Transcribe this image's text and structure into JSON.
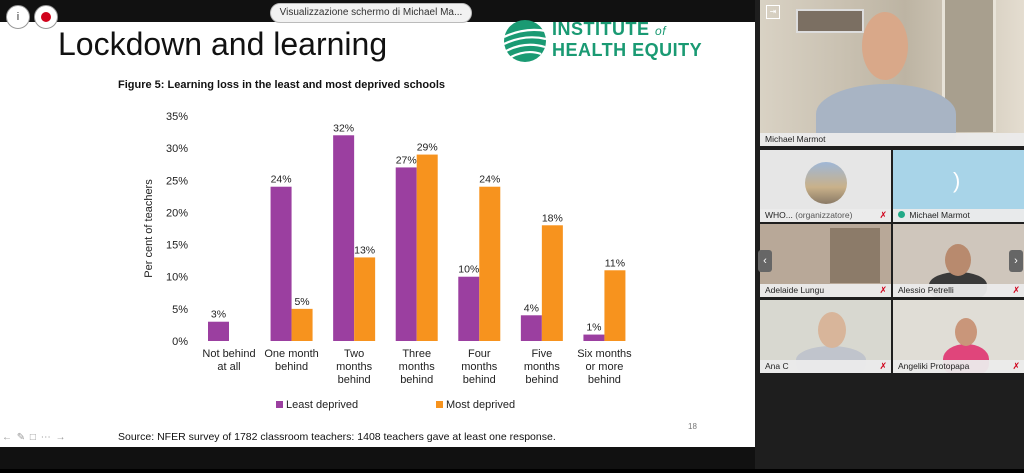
{
  "meeting": {
    "share_label": "Visualizzazione schermo di Michael Ma..."
  },
  "slide": {
    "title": "Lockdown and learning",
    "logo": {
      "line1": "INSTITUTE",
      "of": "of",
      "line2": "HEALTH EQUITY",
      "color": "#1a9a73"
    },
    "figure_title": "Figure 5: Learning loss in the least and most deprived schools",
    "source": "Source: NFER survey of 1782 classroom teachers: 1408 teachers gave at least one response.",
    "page_number": "18"
  },
  "chart_data": {
    "type": "bar",
    "title": "Figure 5: Learning loss in the least and most deprived schools",
    "ylabel": "Per cent of teachers",
    "ylim": [
      0,
      35
    ],
    "yticks": [
      "0%",
      "5%",
      "10%",
      "15%",
      "20%",
      "25%",
      "30%",
      "35%"
    ],
    "grid": false,
    "legend_position": "bottom",
    "categories": [
      [
        "Not behind",
        "at all"
      ],
      [
        "One month",
        "behind"
      ],
      [
        "Two",
        "months",
        "behind"
      ],
      [
        "Three",
        "months",
        "behind"
      ],
      [
        "Four",
        "months",
        "behind"
      ],
      [
        "Five",
        "months",
        "behind"
      ],
      [
        "Six months",
        "or more",
        "behind"
      ]
    ],
    "series": [
      {
        "name": "Least deprived",
        "color": "#9b3fa0",
        "values": [
          3,
          24,
          32,
          27,
          10,
          4,
          1
        ],
        "labels": [
          "3%",
          "24%",
          "32%",
          "27%",
          "10%",
          "4%",
          "1%"
        ]
      },
      {
        "name": "Most deprived",
        "color": "#f7931e",
        "values": [
          0,
          5,
          13,
          29,
          24,
          18,
          11
        ],
        "labels": [
          "",
          "5%",
          "13%",
          "29%",
          "24%",
          "18%",
          "11%"
        ]
      }
    ]
  },
  "participants": [
    {
      "name": "Michael Marmot",
      "role": "speaker"
    },
    {
      "name": "WHO...",
      "suffix": "(organizzatore)"
    },
    {
      "name": "Michael Marmot"
    },
    {
      "name": "Adelaide Lungu"
    },
    {
      "name": "Alessio Petrelli"
    },
    {
      "name": "Ana C"
    },
    {
      "name": "Angeliki Protopapa"
    }
  ]
}
